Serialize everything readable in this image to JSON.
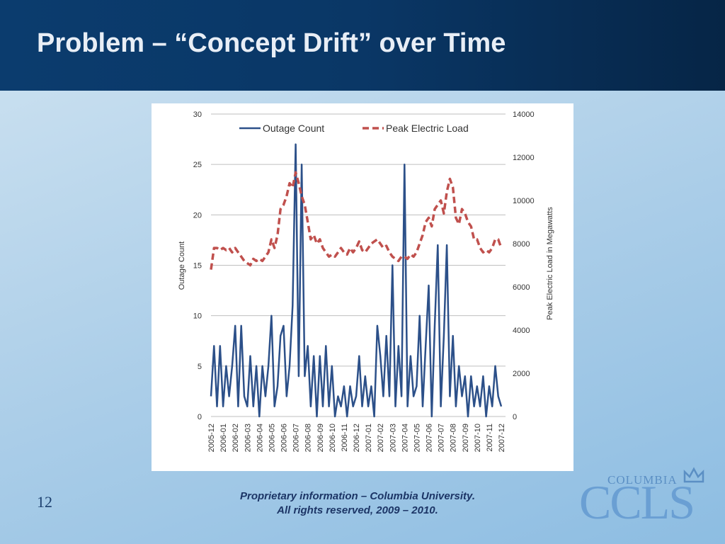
{
  "slide": {
    "title": "Problem – “Concept Drift” over Time",
    "page_number": "12",
    "footer": [
      "Proprietary information – Columbia University.",
      "All rights reserved, 2009 – 2010."
    ],
    "logo_small": "COLUMBIA",
    "logo_big": "CCLS"
  },
  "chart_data": {
    "type": "line",
    "categories": [
      "2005-12",
      null,
      null,
      null,
      "2006-01",
      null,
      null,
      null,
      "2006-02",
      null,
      null,
      null,
      "2006-03",
      null,
      null,
      null,
      "2006-04",
      null,
      null,
      null,
      "2006-05",
      null,
      null,
      null,
      "2006-06",
      null,
      null,
      null,
      "2006-07",
      null,
      null,
      null,
      "2006-08",
      null,
      null,
      null,
      "2006-09",
      null,
      null,
      null,
      "2006-10",
      null,
      null,
      null,
      "2006-11",
      null,
      null,
      null,
      "2006-12",
      null,
      null,
      null,
      "2007-01",
      null,
      null,
      null,
      "2007-02",
      null,
      null,
      null,
      "2007-03",
      null,
      null,
      null,
      "2007-04",
      null,
      null,
      null,
      "2007-05",
      null,
      null,
      null,
      "2007-06",
      null,
      null,
      null,
      "2007-07",
      null,
      null,
      null,
      "2007-08",
      null,
      null,
      null,
      "2007-09",
      null,
      null,
      null,
      "2007-10",
      null,
      null,
      null,
      "2007-11",
      null,
      null,
      null,
      "2007-12"
    ],
    "series": [
      {
        "name": "Outage Count",
        "color": "#2c5089",
        "values": [
          2,
          7,
          1,
          7,
          1,
          5,
          2,
          5,
          9,
          1,
          9,
          2,
          1,
          6,
          1,
          5,
          0,
          5,
          2,
          5,
          10,
          1,
          3,
          8,
          9,
          2,
          5,
          11,
          27,
          4,
          25,
          4,
          7,
          1,
          6,
          0,
          6,
          1,
          7,
          1,
          5,
          0,
          2,
          1,
          3,
          0,
          3,
          1,
          2,
          6,
          1,
          4,
          1,
          3,
          0,
          9,
          6,
          2,
          8,
          2,
          15,
          1,
          7,
          2,
          25,
          1,
          6,
          2,
          3,
          10,
          1,
          7,
          13,
          0,
          9,
          17,
          1,
          8,
          17,
          2,
          8,
          1,
          5,
          2,
          4,
          0,
          4,
          1,
          3,
          1,
          4,
          0,
          3,
          1,
          5,
          2,
          1
        ]
      },
      {
        "name": "Peak Electric Load",
        "color": "#c0504d",
        "dashed": true,
        "axis": "y2",
        "values": [
          6800,
          7800,
          7800,
          7700,
          7800,
          7700,
          7800,
          7600,
          7800,
          7600,
          7400,
          7200,
          7100,
          7000,
          7300,
          7200,
          7300,
          7200,
          7400,
          7600,
          8200,
          7800,
          8400,
          9600,
          9800,
          10200,
          10800,
          10600,
          11300,
          10800,
          10200,
          9800,
          9000,
          8200,
          8400,
          8000,
          8200,
          7800,
          7600,
          7400,
          7500,
          7400,
          7600,
          7800,
          7600,
          7500,
          7800,
          7600,
          7800,
          8100,
          7700,
          7600,
          7800,
          8000,
          8100,
          8200,
          8000,
          7800,
          7900,
          7600,
          7400,
          7300,
          7200,
          7400,
          7400,
          7300,
          7500,
          7400,
          7600,
          8000,
          8400,
          9000,
          9200,
          8800,
          9600,
          9800,
          10000,
          9400,
          10400,
          11000,
          10600,
          9200,
          8900,
          9600,
          9400,
          9000,
          8800,
          8200,
          8200,
          7800,
          7600,
          7700,
          7600,
          7800,
          8200,
          8200,
          7800
        ]
      }
    ],
    "ylabel": "Outage Count",
    "y2label": "Peak Electric Load in Megawatts",
    "ylim": [
      0,
      30
    ],
    "yticks": [
      0,
      5,
      10,
      15,
      20,
      25,
      30
    ],
    "y2lim": [
      0,
      14000
    ],
    "y2ticks": [
      0,
      2000,
      4000,
      6000,
      8000,
      10000,
      12000,
      14000
    ],
    "grid": true,
    "legend": "top"
  }
}
